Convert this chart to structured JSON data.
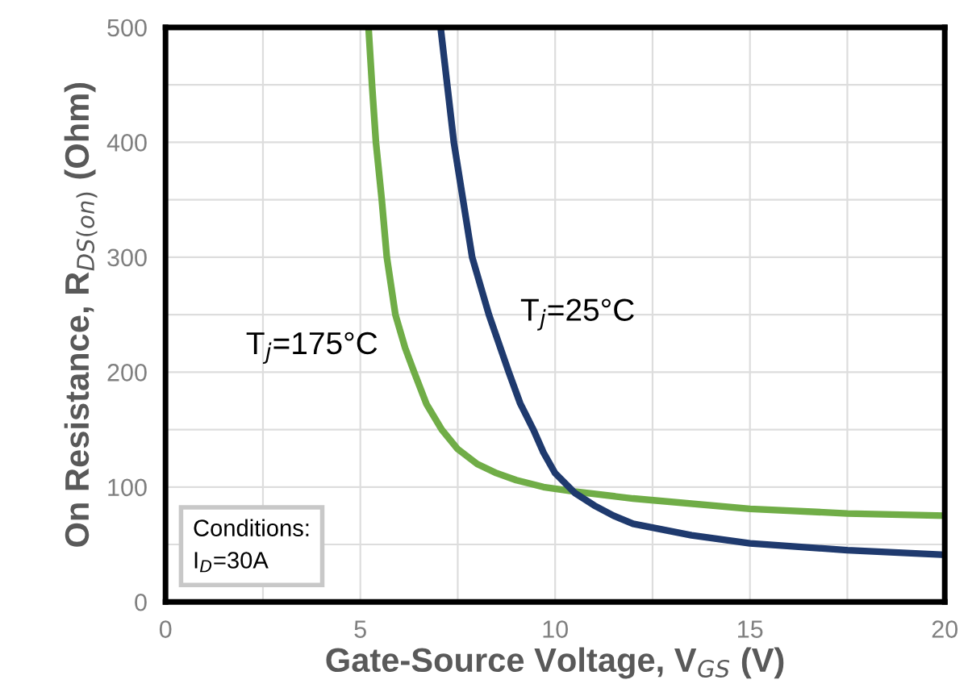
{
  "chart_data": {
    "type": "line",
    "xlabel": "Gate-Source Voltage, V$_{GS}$ (V)",
    "ylabel": "On Resistance, R$_{DS(on)}$ (Ohm)",
    "xlim": [
      0,
      20
    ],
    "xticks": [
      0,
      {
        "value": 2.5,
        "label": null
      },
      5,
      {
        "value": 7.5,
        "label": null
      },
      10,
      {
        "value": 12.5,
        "label": null
      },
      15,
      {
        "value": 17.5,
        "label": null
      },
      20
    ],
    "ylim": [
      0,
      500
    ],
    "yticks": [
      0,
      {
        "value": 50,
        "label": null
      },
      100,
      {
        "value": 150,
        "label": null
      },
      200,
      {
        "value": 250,
        "label": null
      },
      300,
      {
        "value": 350,
        "label": null
      },
      400,
      {
        "value": 450,
        "label": null
      },
      500
    ],
    "grid": true,
    "legend": false,
    "marker": "none",
    "line_style": "solid",
    "annotations": [
      "Conditions:\nI$_{D}$=30A"
    ],
    "series": [
      {
        "name": "T$_{j}$=175°C",
        "color": "#70ad47",
        "x": [
          5.21,
          5.3,
          5.4,
          5.55,
          5.68,
          5.9,
          6.15,
          6.38,
          6.7,
          7.09,
          7.5,
          8.0,
          8.5,
          9.0,
          9.7,
          10.5,
          12,
          15,
          17.5,
          20
        ],
        "values": [
          500,
          450,
          400,
          350,
          300,
          250,
          221,
          200,
          172,
          150,
          133,
          120,
          112,
          106,
          100,
          96,
          90,
          81,
          77,
          75
        ]
      },
      {
        "name": "T$_{j}$=25°C",
        "color": "#1f3a6e",
        "x": [
          7.06,
          7.4,
          7.87,
          8.3,
          8.81,
          9.1,
          9.44,
          9.7,
          10.0,
          10.5,
          11,
          11.5,
          12,
          13.5,
          15,
          17.5,
          20
        ],
        "values": [
          500,
          400,
          300,
          250,
          200,
          173,
          150,
          130,
          112,
          95,
          84,
          75,
          68,
          58,
          51,
          45,
          41
        ]
      }
    ]
  }
}
